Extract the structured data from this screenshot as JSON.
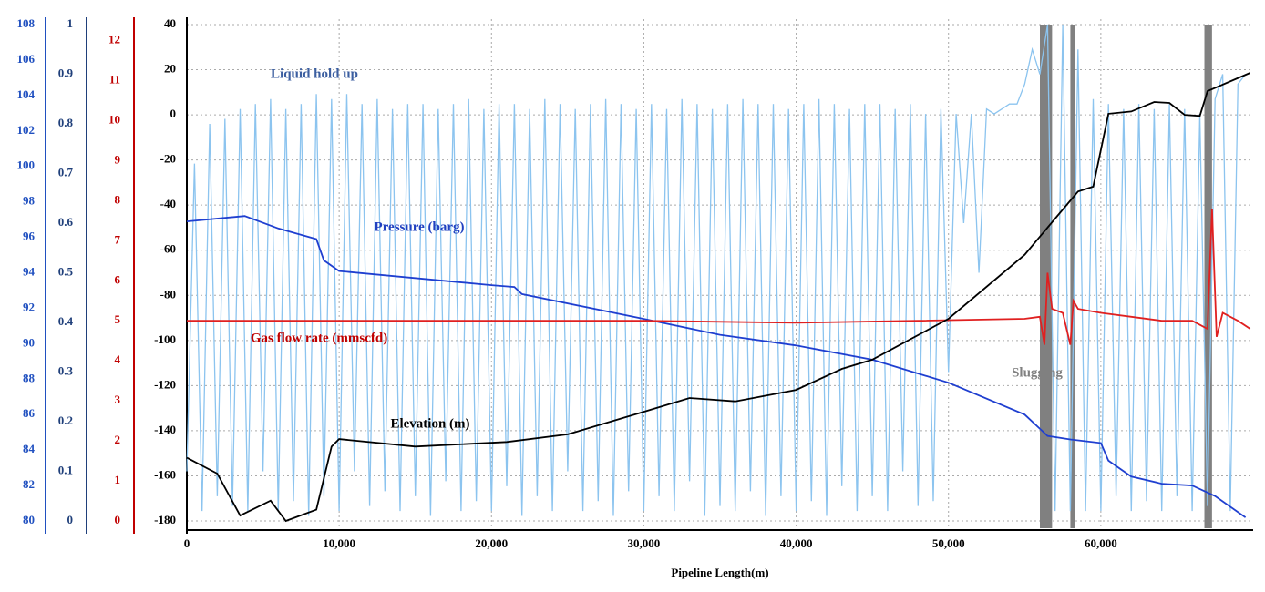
{
  "chart_data": {
    "type": "line",
    "xlabel": "Pipeline Length(m)",
    "xlim": [
      0,
      70000
    ],
    "xticks": [
      0,
      {
        "value": 10000,
        "label": "10,000"
      },
      {
        "value": 20000,
        "label": "20,000"
      },
      {
        "value": 30000,
        "label": "30,000"
      },
      {
        "value": 40000,
        "label": "40,000"
      },
      {
        "value": 50000,
        "label": "50,000"
      },
      {
        "value": 60000,
        "label": "60,000"
      }
    ],
    "grid": true,
    "axes": [
      {
        "id": "pressure",
        "color": "#2050c0",
        "lim": [
          80,
          108
        ],
        "ticks": [
          80,
          82,
          84,
          86,
          88,
          90,
          92,
          94,
          96,
          98,
          100,
          102,
          104,
          106,
          108
        ]
      },
      {
        "id": "holdup",
        "color": "#1f3f7a",
        "lim": [
          0,
          1
        ],
        "ticks": [
          0,
          0.1,
          0.2,
          0.3,
          0.4,
          0.5,
          0.6,
          0.7,
          0.8,
          0.9,
          1
        ]
      },
      {
        "id": "gas",
        "color": "#c00000",
        "lim": [
          0,
          12.4
        ],
        "ticks": [
          0,
          1,
          2,
          3,
          4,
          5,
          6,
          7,
          8,
          9,
          10,
          11,
          12
        ]
      },
      {
        "id": "elevation",
        "color": "#000000",
        "lim": [
          -180,
          40
        ],
        "ticks": [
          -180,
          -160,
          -140,
          -120,
          -100,
          -80,
          -60,
          -40,
          -20,
          0,
          20,
          40
        ]
      }
    ],
    "slug_regions": [
      [
        56000,
        56800
      ],
      [
        58000,
        58300
      ],
      [
        66800,
        67300
      ]
    ],
    "series": [
      {
        "name": "Liquid hold up",
        "color": "#8cc4ef",
        "axis": "holdup",
        "x": [
          0,
          500,
          1000,
          1500,
          2000,
          2500,
          3000,
          3500,
          4000,
          4500,
          5000,
          5500,
          6000,
          6500,
          7000,
          7500,
          8000,
          8500,
          9000,
          9500,
          10000,
          10500,
          11000,
          11500,
          12000,
          12500,
          13000,
          13500,
          14000,
          14500,
          15000,
          15500,
          16000,
          16500,
          17000,
          17500,
          18000,
          18500,
          19000,
          19500,
          20000,
          20500,
          21000,
          21500,
          22000,
          22500,
          23000,
          23500,
          24000,
          24500,
          25000,
          25500,
          26000,
          26500,
          27000,
          27500,
          28000,
          28500,
          29000,
          29500,
          30000,
          30500,
          31000,
          31500,
          32000,
          32500,
          33000,
          33500,
          34000,
          34500,
          35000,
          35500,
          36000,
          36500,
          37000,
          37500,
          38000,
          38500,
          39000,
          39500,
          40000,
          40500,
          41000,
          41500,
          42000,
          42500,
          43000,
          43500,
          44000,
          44500,
          45000,
          45500,
          46000,
          46500,
          47000,
          47500,
          48000,
          48500,
          49000,
          49500,
          50000,
          50500,
          51000,
          51500,
          52000,
          52500,
          53000,
          53500,
          54000,
          54500,
          55000,
          55500,
          56000,
          56500,
          57000,
          57500,
          58000,
          58500,
          59000,
          59500,
          60000,
          60500,
          61000,
          61500,
          62000,
          62500,
          63000,
          63500,
          64000,
          64500,
          65000,
          65500,
          66000,
          66500,
          67000,
          67500,
          68000,
          68500,
          69000,
          69500
        ],
        "values": [
          0.1,
          0.72,
          0.02,
          0.8,
          0.05,
          0.81,
          0.03,
          0.83,
          0.02,
          0.84,
          0.1,
          0.85,
          0.02,
          0.83,
          0.04,
          0.84,
          0.01,
          0.86,
          0.05,
          0.85,
          0.02,
          0.86,
          0.1,
          0.84,
          0.03,
          0.85,
          0.06,
          0.83,
          0.02,
          0.84,
          0.05,
          0.84,
          0.01,
          0.83,
          0.08,
          0.84,
          0.02,
          0.85,
          0.04,
          0.83,
          0.02,
          0.84,
          0.07,
          0.84,
          0.01,
          0.83,
          0.05,
          0.85,
          0.02,
          0.84,
          0.1,
          0.83,
          0.02,
          0.84,
          0.04,
          0.85,
          0.01,
          0.84,
          0.06,
          0.83,
          0.02,
          0.84,
          0.05,
          0.83,
          0.02,
          0.85,
          0.08,
          0.84,
          0.01,
          0.83,
          0.03,
          0.84,
          0.02,
          0.85,
          0.06,
          0.84,
          0.01,
          0.84,
          0.05,
          0.83,
          0.02,
          0.84,
          0.04,
          0.85,
          0.01,
          0.84,
          0.07,
          0.83,
          0.02,
          0.84,
          0.05,
          0.84,
          0.02,
          0.83,
          0.1,
          0.84,
          0.03,
          0.82,
          0.04,
          0.83,
          0.3,
          0.82,
          0.6,
          0.82,
          0.5,
          0.83,
          0.82,
          0.83,
          0.84,
          0.84,
          0.88,
          0.95,
          0.9,
          1.0,
          0.02,
          1.0,
          0.02,
          0.95,
          0.02,
          0.85,
          0.02,
          0.84,
          0.05,
          0.83,
          0.02,
          0.84,
          0.04,
          0.83,
          0.02,
          0.84,
          0.05,
          0.83,
          0.02,
          0.82,
          0.03,
          0.85,
          0.9,
          0.02,
          0.88,
          0.9
        ]
      },
      {
        "name": "Pressure (barg)",
        "color": "#1f3fd0",
        "axis": "pressure",
        "x": [
          0,
          3800,
          6000,
          8500,
          9000,
          10000,
          20000,
          21500,
          22000,
          30000,
          35000,
          40000,
          45000,
          50000,
          55000,
          56500,
          58000,
          60000,
          60500,
          62000,
          64000,
          66000,
          67500,
          69500
        ],
        "values": [
          96.9,
          97.2,
          96.5,
          95.9,
          94.7,
          94.1,
          93.3,
          93.2,
          92.8,
          91.4,
          90.5,
          89.9,
          89.1,
          87.8,
          86.0,
          84.8,
          84.6,
          84.4,
          83.4,
          82.5,
          82.1,
          82.0,
          81.4,
          80.2
        ]
      },
      {
        "name": "Gas flow rate (mmscfd)",
        "color": "#e02020",
        "axis": "gas",
        "x": [
          0,
          10000,
          20000,
          30000,
          40000,
          48000,
          55000,
          56000,
          56300,
          56500,
          56800,
          57500,
          58000,
          58200,
          58500,
          60000,
          62000,
          64000,
          66000,
          67000,
          67300,
          67600,
          68000,
          69000,
          69800
        ],
        "values": [
          5.0,
          5.0,
          5.0,
          5.0,
          4.95,
          5.0,
          5.05,
          5.1,
          4.4,
          6.2,
          5.3,
          5.2,
          4.4,
          5.5,
          5.3,
          5.2,
          5.1,
          5.0,
          5.0,
          4.8,
          7.8,
          4.6,
          5.2,
          5.0,
          4.8
        ]
      },
      {
        "name": "Elevation (m)",
        "color": "#000000",
        "axis": "elevation",
        "x": [
          0,
          2000,
          3500,
          5500,
          6500,
          8500,
          9500,
          10000,
          15000,
          21000,
          25000,
          30000,
          33000,
          36000,
          40000,
          43000,
          45000,
          50000,
          55000,
          57000,
          58500,
          59500,
          60500,
          62000,
          63500,
          64500,
          65500,
          66500,
          67000,
          69800
        ],
        "values": [
          -152,
          -159,
          -177.6,
          -171,
          -180,
          -175,
          -147,
          -143.7,
          -147,
          -145,
          -141.6,
          -131.6,
          -125.5,
          -127,
          -121.9,
          -112.6,
          -108.5,
          -90.4,
          -62,
          -46,
          -34,
          -31.8,
          0.5,
          1.5,
          5.7,
          5.3,
          0,
          -0.5,
          10.5,
          18.6
        ]
      }
    ],
    "annotations": [
      "Slugging"
    ]
  }
}
